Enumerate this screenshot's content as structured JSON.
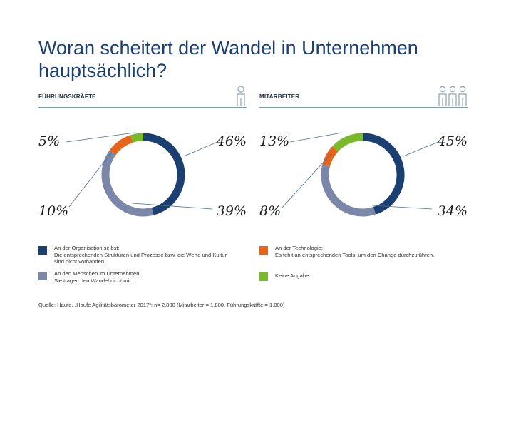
{
  "title": {
    "line1": "Woran scheitert der Wandel in Unternehmen",
    "line2": "hauptsächlich?"
  },
  "colors": {
    "title": "#1b3f70",
    "rule": "#7d9db4",
    "icon": "#8aa4b8"
  },
  "panels": [
    {
      "label": "FÜHRUNGSKRÄFTE",
      "icon": "single-person-icon"
    },
    {
      "label": "MITARBEITER",
      "icon": "group-of-people-icon"
    }
  ],
  "chart_data": [
    {
      "type": "pie",
      "title": "FÜHRUNGSKRÄFTE",
      "donut": true,
      "categories": [
        "An der Organisation selbst",
        "An den Menschen im Unternehmen",
        "An der Technologie",
        "Keine Angabe"
      ],
      "values": [
        46,
        39,
        10,
        5
      ],
      "labels": [
        "46%",
        "39%",
        "10%",
        "5%"
      ],
      "colors": [
        "#1b3f70",
        "#7a87a8",
        "#e8641b",
        "#7ab929"
      ]
    },
    {
      "type": "pie",
      "title": "MITARBEITER",
      "donut": true,
      "categories": [
        "An der Organisation selbst",
        "An den Menschen im Unternehmen",
        "An der Technologie",
        "Keine Angabe"
      ],
      "values": [
        45,
        34,
        8,
        13
      ],
      "labels": [
        "45%",
        "34%",
        "8%",
        "13%"
      ],
      "colors": [
        "#1b3f70",
        "#7a87a8",
        "#e8641b",
        "#7ab929"
      ]
    }
  ],
  "legend": [
    {
      "color": "#1b3f70",
      "lines": [
        "An der Organisation selbst:",
        "Die entsprechenden Strukturen und Prozesse bzw. die Werte und Kultur",
        "sind nicht vorhanden."
      ]
    },
    {
      "color": "#7a87a8",
      "lines": [
        "An den Menschen im Unternehmen:",
        "Sie tragen den Wandel nicht mit."
      ]
    },
    {
      "color": "#e8641b",
      "lines": [
        "An der Technologie:",
        "Es fehlt an entsprechenden Tools, um den Change durchzuführen."
      ]
    },
    {
      "color": "#7ab929",
      "lines": [
        "Keine Angabe"
      ]
    }
  ],
  "source": "Quelle: Haufe, „Haufe Agilitätsbarometer 2017“; n= 2.800 (Mitarbeiter = 1.800, Führungskräfte = 1.000)"
}
